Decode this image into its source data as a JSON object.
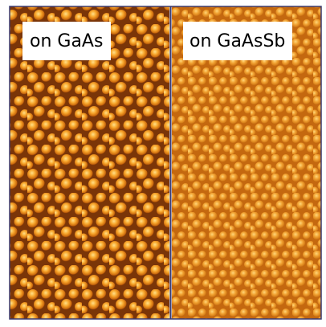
{
  "panels": [
    {
      "label": "on GaAs"
    },
    {
      "label": "on GaAsSb"
    }
  ]
}
